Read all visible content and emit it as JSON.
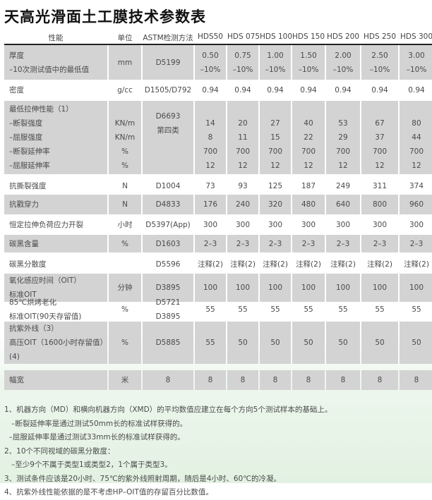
{
  "title": "天高光滑面土工膜技术参数表",
  "headers": [
    "性能",
    "单位",
    "ASTM检测方法",
    "HDS50",
    "HDS 075",
    "HDS 100",
    "HDS 150",
    "HDS 200",
    "HDS 250",
    "HDS 300"
  ],
  "rows": [
    {
      "label": "厚度\n–10次测试值中的最低值",
      "unit": "mm\n",
      "method": "D5199\n",
      "values": [
        "0.50\n–10%",
        "0.75\n–10%",
        "1.00\n–10%",
        "1.50\n–10%",
        "2.00\n–10%",
        "2.50\n–10%",
        "3.00\n–10%"
      ],
      "shaded": true
    },
    {
      "label": "密度",
      "unit": "g/cc",
      "method": "D1505/D792",
      "values": [
        "0.94",
        "0.94",
        "0.94",
        "0.94",
        "0.94",
        "0.94",
        "0.94"
      ],
      "shaded": false
    },
    {
      "label": "最低拉伸性能（1）\n–断裂强度\n–屈服强度\n–断裂延伸率\n–屈服延伸率",
      "unit": "\nKN/m\nKN/m\n%\n%",
      "method": "D6693\n第四类\n\n\n",
      "values": [
        "\n14\n8\n700\n12",
        "\n20\n11\n700\n12",
        "\n27\n15\n700\n12",
        "\n40\n22\n700\n12",
        "\n53\n29\n700\n12",
        "\n67\n37\n700\n12",
        "\n80\n44\n700\n12"
      ],
      "shaded": true
    },
    {
      "label": "抗撕裂强度",
      "unit": "N",
      "method": "D1004",
      "values": [
        "73",
        "93",
        "125",
        "187",
        "249",
        "311",
        "374"
      ],
      "shaded": false
    },
    {
      "label": "抗戳穿力",
      "unit": "N",
      "method": "D4833",
      "values": [
        "176",
        "240",
        "320",
        "480",
        "640",
        "800",
        "960"
      ],
      "shaded": true
    },
    {
      "label": "恒定拉伸负荷应力开裂",
      "unit": "小时",
      "method": "D5397(App)",
      "values": [
        "300",
        "300",
        "300",
        "300",
        "300",
        "300",
        "300"
      ],
      "shaded": false
    },
    {
      "label": "碳黑含量",
      "unit": "%",
      "method": "D1603",
      "values": [
        "2–3",
        "2–3",
        "2–3",
        "2–3",
        "2–3",
        "2–3",
        "2–3"
      ],
      "shaded": true
    },
    {
      "label": "碳黑分散度",
      "unit": "",
      "method": "D5596",
      "values": [
        "注释(2)",
        "注释(2)",
        "注释(2)",
        "注释(2)",
        "注释(2)",
        "注释(2)",
        "注释(2)"
      ],
      "shaded": false
    },
    {
      "label": "氧化感应时间（OIT）\n标准OIT",
      "unit": "分钟",
      "method": "D3895",
      "values": [
        "100",
        "100",
        "100",
        "100",
        "100",
        "100",
        "100"
      ],
      "shaded": true
    },
    {
      "label": "85℃烘烤老化\n标准OIT(90天存留值)",
      "unit": "%",
      "method": "D5721\nD3895",
      "values": [
        "55",
        "55",
        "55",
        "55",
        "55",
        "55",
        "55"
      ],
      "shaded": false
    },
    {
      "label": "抗紫外线（3）\n高压OIT（1600小时存留值）(4)",
      "unit": "%",
      "method": "D5885",
      "values": [
        "55",
        "50",
        "50",
        "50",
        "50",
        "50",
        "50"
      ],
      "shaded": true
    },
    {
      "label": "幅宽",
      "unit": "米",
      "method": "8",
      "values": [
        "8",
        "8",
        "8",
        "8",
        "8",
        "8",
        "8"
      ],
      "shaded": true
    }
  ],
  "notes": [
    "1、机器方向（MD）和横向机器方向（XMD）的平均数值应建立在每个方向5个测试样本的基础上。",
    "   –断裂延伸率是通过测试50mm长的标准试样获得的。",
    "  –屈服延伸率是通过测试33mm长的标准试样获得的。",
    "2、10个不同视域的碳黑分散度：",
    "   –至少9个不属于类型1或类型2，1个属于类型3。",
    "3、测试条件应该是20小时、75℃的紫外线照射周期，随后是4小时、60℃的冷凝。",
    "4、抗紫外线性能依据的是不考虑HP–OIT值的存留百分比数值。"
  ]
}
